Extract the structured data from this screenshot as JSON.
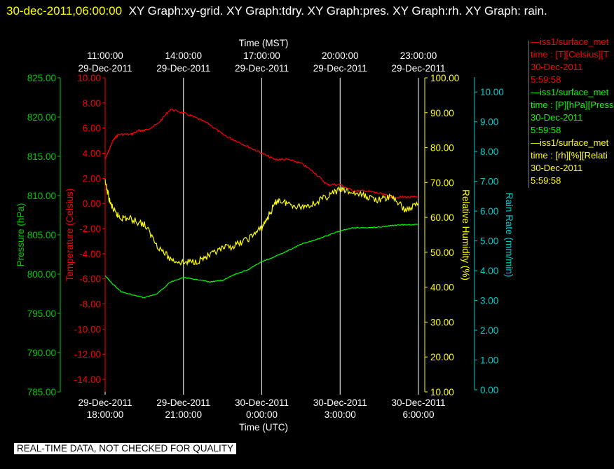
{
  "header": {
    "timestamp": "30-dec-2011,06:00:00",
    "graphs": "XY Graph:xy-grid.  XY Graph:tdry.  XY Graph:pres.  XY Graph:rh.  XY Graph: rain."
  },
  "banner": "REAL-TIME DATA, NOT CHECKED FOR QUALITY",
  "legend": [
    {
      "line1": "—iss1/surface_met",
      "line2": "time : [T][Celsius][T",
      "date": "30-Dec-2011",
      "time": "5:59:58",
      "color": "#ff0000"
    },
    {
      "line1": "—iss1/surface_met",
      "line2": "time : [P][hPa][Press",
      "date": "30-Dec-2011",
      "time": "5:59:58",
      "color": "#00ff00"
    },
    {
      "line1": "—iss1/surface_met",
      "line2": "time : [rh][%][Relati",
      "date": "30-Dec-2011",
      "time": "5:59:58",
      "color": "#ffff00"
    }
  ],
  "chart_data": {
    "type": "line",
    "x_top_title": "Time (MST)",
    "x_bottom_title": "Time (UTC)",
    "x_ticks_mst": [
      {
        "t": "11:00:00",
        "d": "29-Dec-2011"
      },
      {
        "t": "14:00:00",
        "d": "29-Dec-2011"
      },
      {
        "t": "17:00:00",
        "d": "29-Dec-2011"
      },
      {
        "t": "20:00:00",
        "d": "29-Dec-2011"
      },
      {
        "t": "23:00:00",
        "d": "29-Dec-2011"
      }
    ],
    "x_ticks_utc": [
      {
        "d": "29-Dec-2011",
        "t": "18:00:00"
      },
      {
        "d": "29-Dec-2011",
        "t": "21:00:00"
      },
      {
        "d": "30-Dec-2011",
        "t": "0:00:00"
      },
      {
        "d": "30-Dec-2011",
        "t": "3:00:00"
      },
      {
        "d": "30-Dec-2011",
        "t": "6:00:00"
      }
    ],
    "x_range_utc": [
      "29-Dec-2011 18:00:00",
      "30-Dec-2011 06:00:00"
    ],
    "vertical_grid": true,
    "axes": {
      "temperature": {
        "label": "Temperature (Celsius)",
        "range": [
          -15,
          10
        ],
        "ticks": [
          "10.00",
          "8.00",
          "6.00",
          "4.00",
          "2.00",
          "0.00",
          "-2.00",
          "-4.00",
          "-6.00",
          "-8.00",
          "-10.00",
          "-12.00",
          "-14.00"
        ],
        "color": "#ff0000"
      },
      "pressure": {
        "label": "Pressure (hPa)",
        "range": [
          785,
          825
        ],
        "ticks": [
          "825.00",
          "820.00",
          "815.00",
          "810.00",
          "805.00",
          "800.00",
          "795.00",
          "790.00",
          "785.00"
        ],
        "color": "#00cc00"
      },
      "humidity": {
        "label": "Relative Humidity (%)",
        "range": [
          10,
          100
        ],
        "ticks": [
          "100.00",
          "90.00",
          "80.00",
          "70.00",
          "60.00",
          "50.00",
          "40.00",
          "30.00",
          "20.00",
          "10.00"
        ],
        "color": "#ffff00"
      },
      "rain": {
        "label": "Rain Rate (mm/min)",
        "range": [
          0,
          10.5
        ],
        "ticks": [
          "10.00",
          "9.00",
          "8.00",
          "7.00",
          "6.00",
          "5.00",
          "4.00",
          "3.00",
          "2.00",
          "1.00",
          "0.00"
        ],
        "color": "#00cccc"
      }
    },
    "series": [
      {
        "name": "Temperature",
        "axis": "temperature",
        "color": "#ff0000",
        "x_hours_utc": [
          18.0,
          18.3,
          18.5,
          19.0,
          19.3,
          19.5,
          20.0,
          20.5,
          21.0,
          21.5,
          22.0,
          22.5,
          23.0,
          23.5,
          24.0,
          24.5,
          25.0,
          25.5,
          26.0,
          26.5,
          27.0,
          27.5,
          28.0,
          28.5,
          29.0,
          29.5,
          30.0
        ],
        "values": [
          3.5,
          5.0,
          5.5,
          5.5,
          5.8,
          5.8,
          6.3,
          7.5,
          7.2,
          6.8,
          6.3,
          5.5,
          5.0,
          4.5,
          4.0,
          3.5,
          3.5,
          3.2,
          2.5,
          1.5,
          1.5,
          1.0,
          1.0,
          0.8,
          0.5,
          0.5,
          0.5
        ]
      },
      {
        "name": "Relative Humidity",
        "axis": "humidity",
        "color": "#ffff00",
        "x_hours_utc": [
          18.0,
          18.2,
          18.4,
          18.6,
          19.0,
          19.5,
          20.0,
          20.5,
          21.0,
          21.5,
          22.0,
          22.5,
          23.0,
          23.5,
          24.0,
          24.3,
          24.6,
          25.0,
          25.5,
          26.0,
          26.5,
          27.0,
          27.5,
          28.0,
          28.5,
          29.0,
          29.5,
          30.0
        ],
        "values": [
          70,
          64,
          61,
          60,
          59.5,
          58,
          52,
          48,
          47,
          47.5,
          49,
          51,
          52,
          54,
          57,
          61,
          65,
          64,
          63,
          64,
          66,
          68,
          67,
          66,
          65,
          66,
          62,
          64
        ]
      },
      {
        "name": "Pressure",
        "axis": "pressure",
        "color": "#00ff00",
        "x_hours_utc": [
          18.0,
          18.3,
          18.6,
          19.0,
          19.5,
          20.0,
          20.5,
          21.0,
          21.5,
          22.0,
          22.5,
          23.0,
          23.5,
          24.0,
          24.5,
          25.0,
          25.5,
          26.0,
          26.5,
          27.0,
          27.5,
          28.0,
          28.5,
          29.0,
          29.5,
          30.0
        ],
        "values": [
          799.8,
          798.7,
          797.8,
          797.4,
          797.0,
          797.5,
          799.0,
          799.6,
          799.3,
          799.0,
          799.2,
          800.0,
          800.6,
          801.6,
          802.2,
          803.0,
          803.8,
          804.3,
          804.9,
          805.5,
          805.9,
          805.9,
          806.0,
          806.2,
          806.3,
          806.3
        ]
      }
    ]
  }
}
